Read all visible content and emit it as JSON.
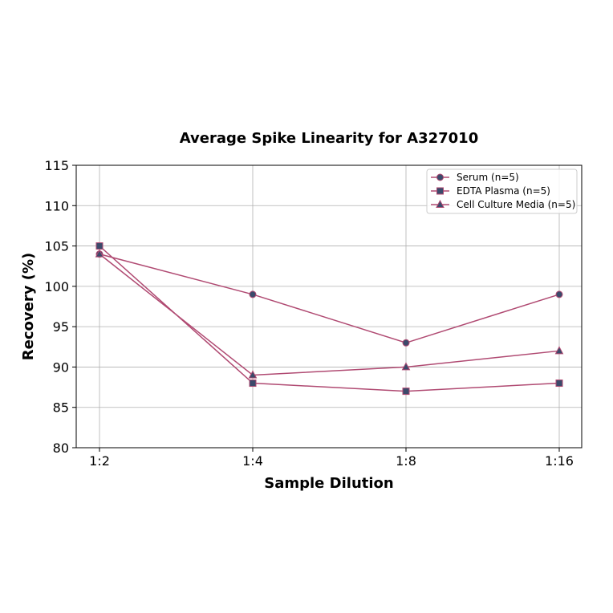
{
  "chart_data": {
    "type": "line",
    "title": "Average Spike Linearity for A327010",
    "xlabel": "Sample Dilution",
    "ylabel": "Recovery (%)",
    "categories": [
      "1:2",
      "1:4",
      "1:8",
      "1:16"
    ],
    "ylim": [
      80,
      115
    ],
    "yticks": [
      80,
      85,
      90,
      95,
      100,
      105,
      110,
      115
    ],
    "grid": true,
    "legend_position": "top-right",
    "line_color": "#b04a72",
    "marker_color": "#3b4a6b",
    "series": [
      {
        "name": "Serum (n=5)",
        "marker": "circle",
        "values": [
          104,
          99,
          93,
          99
        ]
      },
      {
        "name": "EDTA Plasma (n=5)",
        "marker": "square",
        "values": [
          105,
          88,
          87,
          88
        ]
      },
      {
        "name": "Cell Culture Media (n=5)",
        "marker": "triangle",
        "values": [
          104,
          89,
          90,
          92
        ]
      }
    ]
  }
}
